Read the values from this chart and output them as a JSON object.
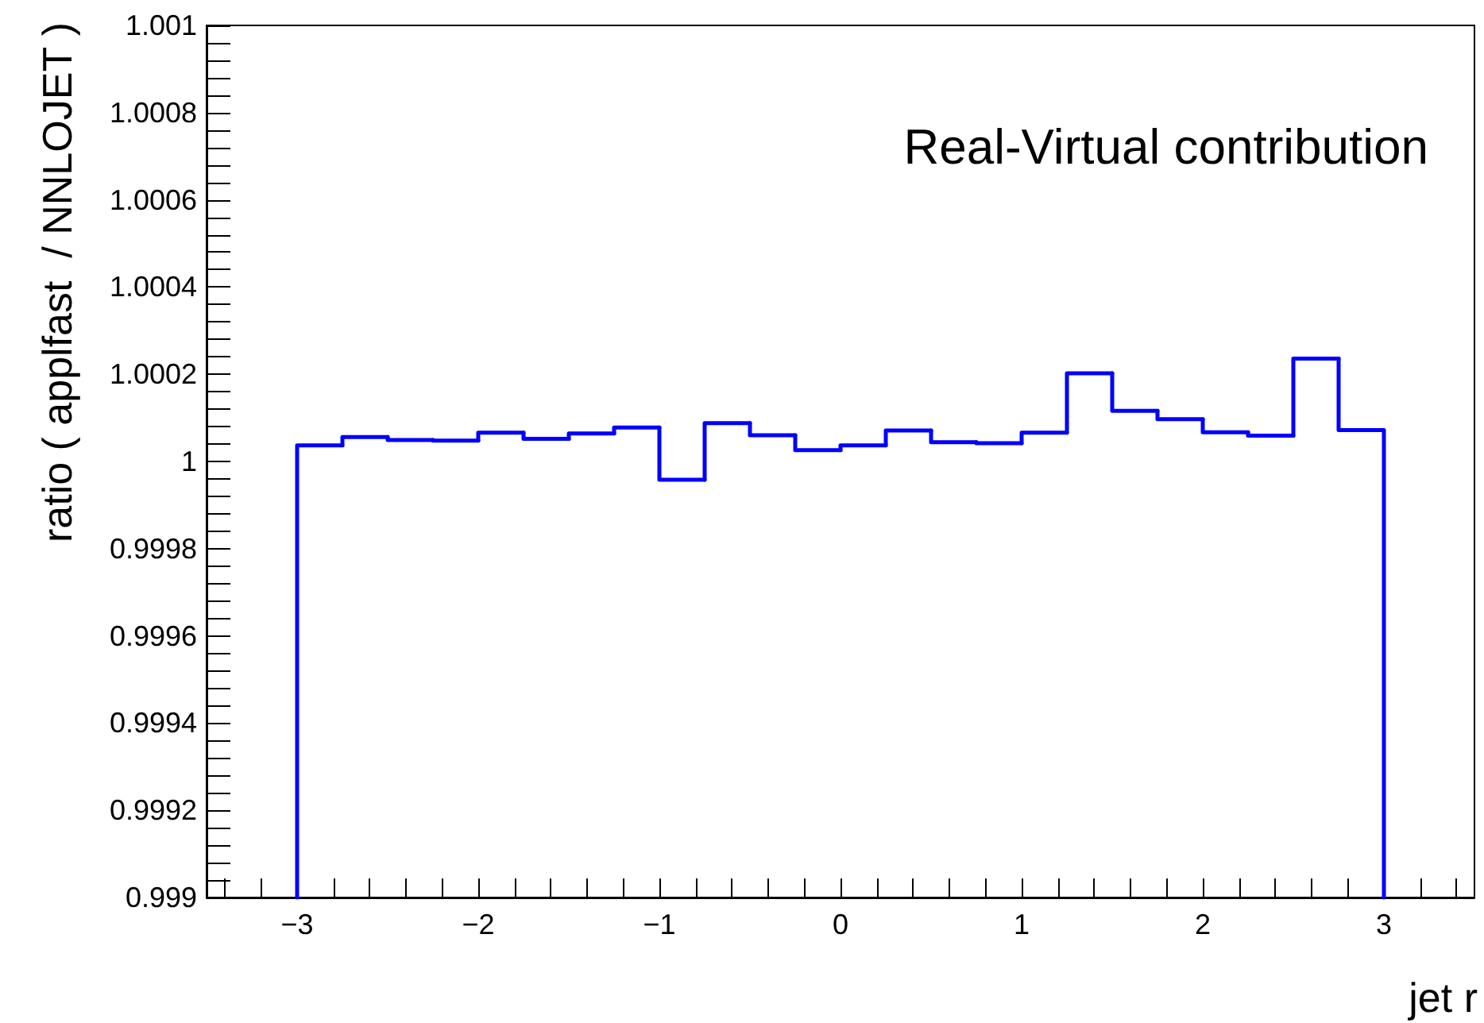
{
  "chart_data": {
    "type": "histogram",
    "title": "Real-Virtual contribution",
    "xlabel": "jet r",
    "ylabel": "ratio ( applfast  / NNLOJET )",
    "color": "#0000ff",
    "bins": [
      -3,
      -2.75,
      -2.5,
      -2.25,
      -2,
      -1.75,
      -1.5,
      -1.25,
      -1,
      -0.75,
      -0.5,
      -0.25,
      0,
      0.25,
      0.5,
      0.75,
      1,
      1.25,
      1.5,
      1.75,
      2,
      2.25,
      2.5,
      2.75,
      3
    ],
    "values": [
      1.000037,
      1.000056,
      1.000049,
      1.000048,
      1.000066,
      1.000052,
      1.000064,
      1.000078,
      0.999958,
      1.000088,
      1.00006,
      1.000026,
      1.000037,
      1.000071,
      1.000044,
      1.000042,
      1.000066,
      1.000202,
      1.000116,
      1.000097,
      1.000067,
      1.000059,
      1.000236,
      1.000072
    ],
    "xlim": [
      -3.5,
      3.5
    ],
    "xticks": [
      {
        "value": -3.4,
        "label": null
      },
      {
        "value": -3.2,
        "label": null
      },
      {
        "value": -3,
        "label": "−3"
      },
      {
        "value": -2.8,
        "label": null
      },
      {
        "value": -2.6,
        "label": null
      },
      {
        "value": -2.4,
        "label": null
      },
      {
        "value": -2.2,
        "label": null
      },
      {
        "value": -2,
        "label": "−2"
      },
      {
        "value": -1.8,
        "label": null
      },
      {
        "value": -1.6,
        "label": null
      },
      {
        "value": -1.4,
        "label": null
      },
      {
        "value": -1.2,
        "label": null
      },
      {
        "value": -1,
        "label": "−1"
      },
      {
        "value": -0.8,
        "label": null
      },
      {
        "value": -0.6,
        "label": null
      },
      {
        "value": -0.4,
        "label": null
      },
      {
        "value": -0.2,
        "label": null
      },
      0,
      {
        "value": 0.2,
        "label": null
      },
      {
        "value": 0.4,
        "label": null
      },
      {
        "value": 0.6,
        "label": null
      },
      {
        "value": 0.8,
        "label": null
      },
      1,
      {
        "value": 1.2,
        "label": null
      },
      {
        "value": 1.4,
        "label": null
      },
      {
        "value": 1.6,
        "label": null
      },
      {
        "value": 1.8,
        "label": null
      },
      2,
      {
        "value": 2.2,
        "label": null
      },
      {
        "value": 2.4,
        "label": null
      },
      {
        "value": 2.6,
        "label": null
      },
      {
        "value": 2.8,
        "label": null
      },
      3,
      {
        "value": 3.2,
        "label": null
      },
      {
        "value": 3.4,
        "label": null
      }
    ],
    "ylim": [
      0.999,
      1.001
    ],
    "yticks": [
      0.999,
      {
        "value": 0.99904,
        "label": null
      },
      {
        "value": 0.99908,
        "label": null
      },
      {
        "value": 0.99912,
        "label": null
      },
      {
        "value": 0.99916,
        "label": null
      },
      0.9992,
      {
        "value": 0.99924,
        "label": null
      },
      {
        "value": 0.99928,
        "label": null
      },
      {
        "value": 0.99932,
        "label": null
      },
      {
        "value": 0.99936,
        "label": null
      },
      0.9994,
      {
        "value": 0.99944,
        "label": null
      },
      {
        "value": 0.99948,
        "label": null
      },
      {
        "value": 0.99952,
        "label": null
      },
      {
        "value": 0.99956,
        "label": null
      },
      0.9996,
      {
        "value": 0.99964,
        "label": null
      },
      {
        "value": 0.99968,
        "label": null
      },
      {
        "value": 0.99972,
        "label": null
      },
      {
        "value": 0.99976,
        "label": null
      },
      0.9998,
      {
        "value": 0.99984,
        "label": null
      },
      {
        "value": 0.99988,
        "label": null
      },
      {
        "value": 0.99992,
        "label": null
      },
      {
        "value": 0.99996,
        "label": null
      },
      1,
      {
        "value": 1.00004,
        "label": null
      },
      {
        "value": 1.00008,
        "label": null
      },
      {
        "value": 1.00012,
        "label": null
      },
      {
        "value": 1.00016,
        "label": null
      },
      1.0002,
      {
        "value": 1.00024,
        "label": null
      },
      {
        "value": 1.00028,
        "label": null
      },
      {
        "value": 1.00032,
        "label": null
      },
      {
        "value": 1.00036,
        "label": null
      },
      1.0004,
      {
        "value": 1.00044,
        "label": null
      },
      {
        "value": 1.00048,
        "label": null
      },
      {
        "value": 1.00052,
        "label": null
      },
      {
        "value": 1.00056,
        "label": null
      },
      1.0006,
      {
        "value": 1.00064,
        "label": null
      },
      {
        "value": 1.00068,
        "label": null
      },
      {
        "value": 1.00072,
        "label": null
      },
      {
        "value": 1.00076,
        "label": null
      },
      1.0008,
      {
        "value": 1.00084,
        "label": null
      },
      {
        "value": 1.00088,
        "label": null
      },
      {
        "value": 1.00092,
        "label": null
      },
      {
        "value": 1.00096,
        "label": null
      },
      1.001
    ]
  }
}
